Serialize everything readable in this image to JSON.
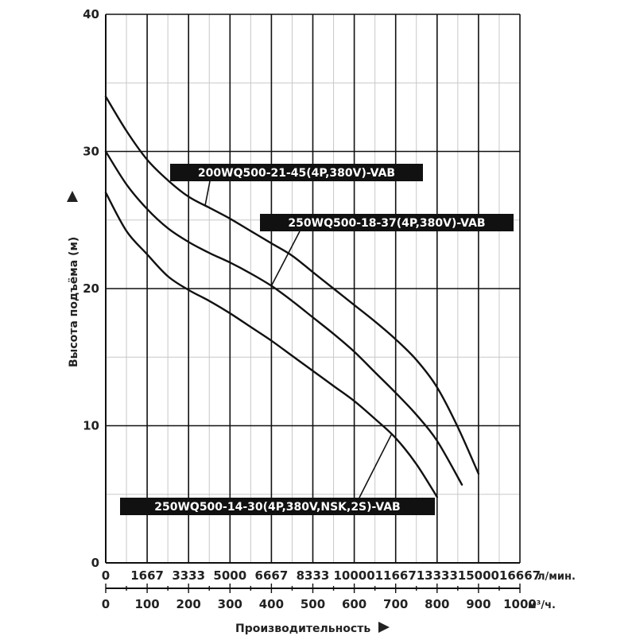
{
  "chart_data": {
    "type": "line",
    "xlabel": "Производительность",
    "ylabel": "Высота подъёма (м)",
    "x_axis_m3h": {
      "ticks": [
        0,
        100,
        200,
        300,
        400,
        500,
        600,
        700,
        800,
        900,
        1000
      ],
      "tick_labels": [
        "0",
        "100",
        "200",
        "300",
        "400",
        "500",
        "600",
        "700",
        "800",
        "900",
        "1000"
      ],
      "unit": "м³/ч.",
      "range": [
        0,
        1000
      ]
    },
    "x_axis_lmin": {
      "tick_labels": [
        "0",
        "1667",
        "3333",
        "5000",
        "6667",
        "8333",
        "10000",
        "11667",
        "13333",
        "15000",
        "16667"
      ],
      "unit": "л/мин."
    },
    "y_axis": {
      "ticks": [
        0,
        10,
        20,
        30,
        40
      ],
      "tick_labels": [
        "0",
        "10",
        "20",
        "30",
        "40"
      ],
      "range": [
        0,
        40
      ]
    },
    "grid": true,
    "series": [
      {
        "name": "200WQ500-21-45(4P,380V)-VAB",
        "x": [
          0,
          50,
          100,
          150,
          200,
          250,
          300,
          350,
          400,
          450,
          500,
          550,
          600,
          650,
          700,
          750,
          800,
          850,
          900
        ],
        "y": [
          34,
          31.5,
          29.4,
          27.9,
          26.7,
          25.9,
          25.1,
          24.2,
          23.3,
          22.4,
          21.2,
          20.0,
          18.8,
          17.6,
          16.3,
          14.8,
          12.8,
          9.9,
          6.5
        ]
      },
      {
        "name": "250WQ500-18-37(4P,380V)-VAB",
        "x": [
          0,
          50,
          100,
          150,
          200,
          250,
          300,
          350,
          400,
          450,
          500,
          550,
          600,
          650,
          700,
          750,
          800,
          860
        ],
        "y": [
          30,
          27.6,
          25.8,
          24.4,
          23.4,
          22.6,
          21.9,
          21.1,
          20.2,
          19.1,
          17.9,
          16.7,
          15.4,
          13.9,
          12.4,
          10.8,
          8.9,
          5.7
        ]
      },
      {
        "name": "250WQ500-14-30(4P,380V,NSK,2S)-VAB",
        "x": [
          0,
          50,
          100,
          150,
          200,
          250,
          300,
          350,
          400,
          450,
          500,
          550,
          600,
          650,
          700,
          750,
          800
        ],
        "y": [
          27,
          24.2,
          22.5,
          20.9,
          19.9,
          19.1,
          18.2,
          17.2,
          16.2,
          15.1,
          14.0,
          12.9,
          11.8,
          10.5,
          9.1,
          7.2,
          4.8
        ]
      }
    ],
    "annotations": [
      {
        "text": "200WQ500-21-45(4P,380V)-VAB",
        "series": 0,
        "pointer_x": 240
      },
      {
        "text": "250WQ500-18-37(4P,380V)-VAB",
        "series": 1,
        "pointer_x": 400
      },
      {
        "text": "250WQ500-14-30(4P,380V,NSK,2S)-VAB",
        "series": 2,
        "pointer_x": 690
      }
    ]
  }
}
